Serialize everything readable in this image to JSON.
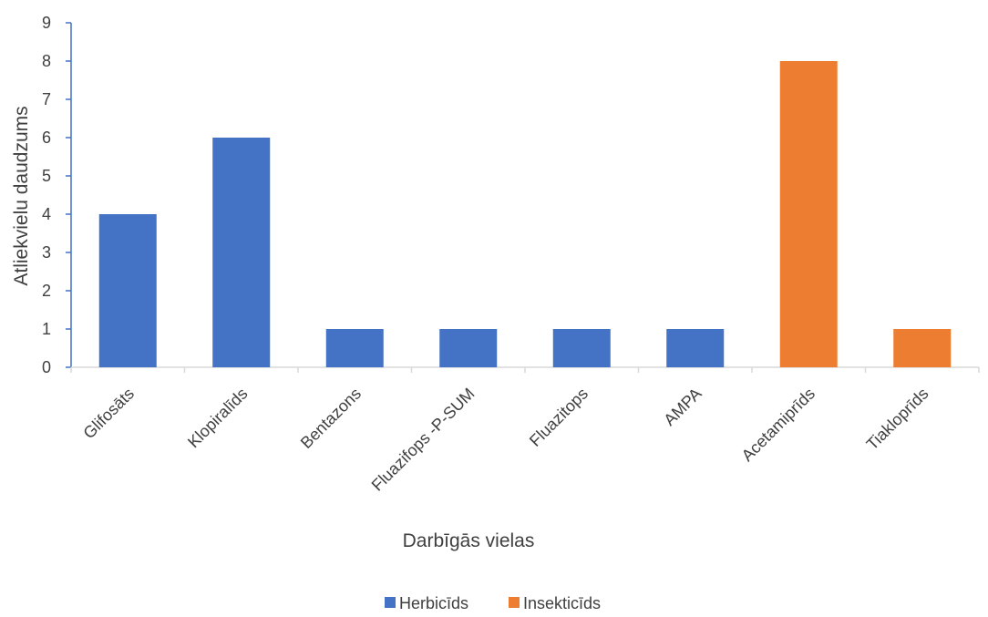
{
  "chart_data": {
    "type": "bar",
    "title": "",
    "xlabel": "Darbīgās vielas",
    "ylabel": "Atliekvielu daudzums",
    "ylim": [
      0,
      9
    ],
    "yticks": [
      0,
      1,
      2,
      3,
      4,
      5,
      6,
      7,
      8,
      9
    ],
    "grid": false,
    "legend_position": "bottom",
    "categories": [
      "Glifosāts",
      "Klopiralīds",
      "Bentazons",
      "Fluazifops -P-SUM",
      "Fluazitops",
      "AMPA",
      "Acetamiprīds",
      "Tiakloprīds"
    ],
    "series": [
      {
        "name": "Herbicīds",
        "color": "#4472C4",
        "values": [
          4,
          6,
          1,
          1,
          1,
          1,
          null,
          null
        ]
      },
      {
        "name": "Insekticīds",
        "color": "#ED7D31",
        "values": [
          null,
          null,
          null,
          null,
          null,
          null,
          8,
          1
        ]
      }
    ]
  }
}
